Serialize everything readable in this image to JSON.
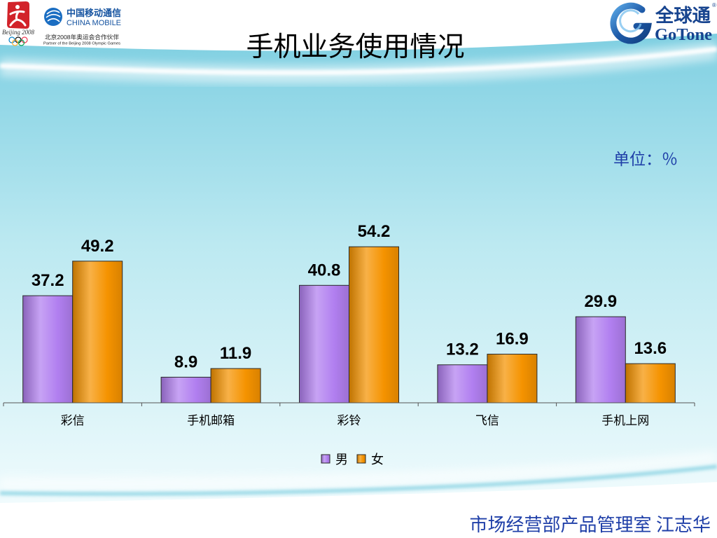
{
  "slide": {
    "footer": "市场经营部产品管理室 江志华"
  },
  "logos": {
    "olympic_emblem": {
      "icon": "beijing-2008-emblem-icon",
      "rings_icon": "olympic-rings-icon",
      "text": "Beijing 2008"
    },
    "china_mobile": {
      "icon": "china-mobile-logo-icon",
      "name_cn": "中国移动通信",
      "name_en": "CHINA MOBILE",
      "partner_cn": "北京2008年奥运会合作伙伴",
      "partner_en": "Partner of the Beijing 2008 Olympic Games"
    },
    "gotone": {
      "icon": "gotone-logo-icon",
      "name_cn": "全球通",
      "name_en": "GoTone",
      "registered_mark": "®"
    }
  },
  "colors": {
    "accent_text": "#1f3fa8",
    "background_top": "#8fd6e6",
    "background_bottom": "#f0fbfd",
    "brand_blue": "#17448f"
  },
  "chart_data": {
    "type": "bar",
    "title": "手机业务使用情况",
    "unit_label": "单位：％",
    "categories": [
      "彩信",
      "手机邮箱",
      "彩铃",
      "飞信",
      "手机上网"
    ],
    "series": [
      {
        "name": "男",
        "values": [
          37.2,
          8.9,
          40.8,
          13.2,
          29.9
        ],
        "color": "#b17ff0"
      },
      {
        "name": "女",
        "values": [
          49.2,
          11.9,
          54.2,
          16.9,
          13.6
        ],
        "color": "#f59300"
      }
    ],
    "ylim": [
      0,
      60
    ],
    "y_axis_visible": false,
    "grid": false,
    "data_labels": true,
    "legend": "bottom-center"
  }
}
